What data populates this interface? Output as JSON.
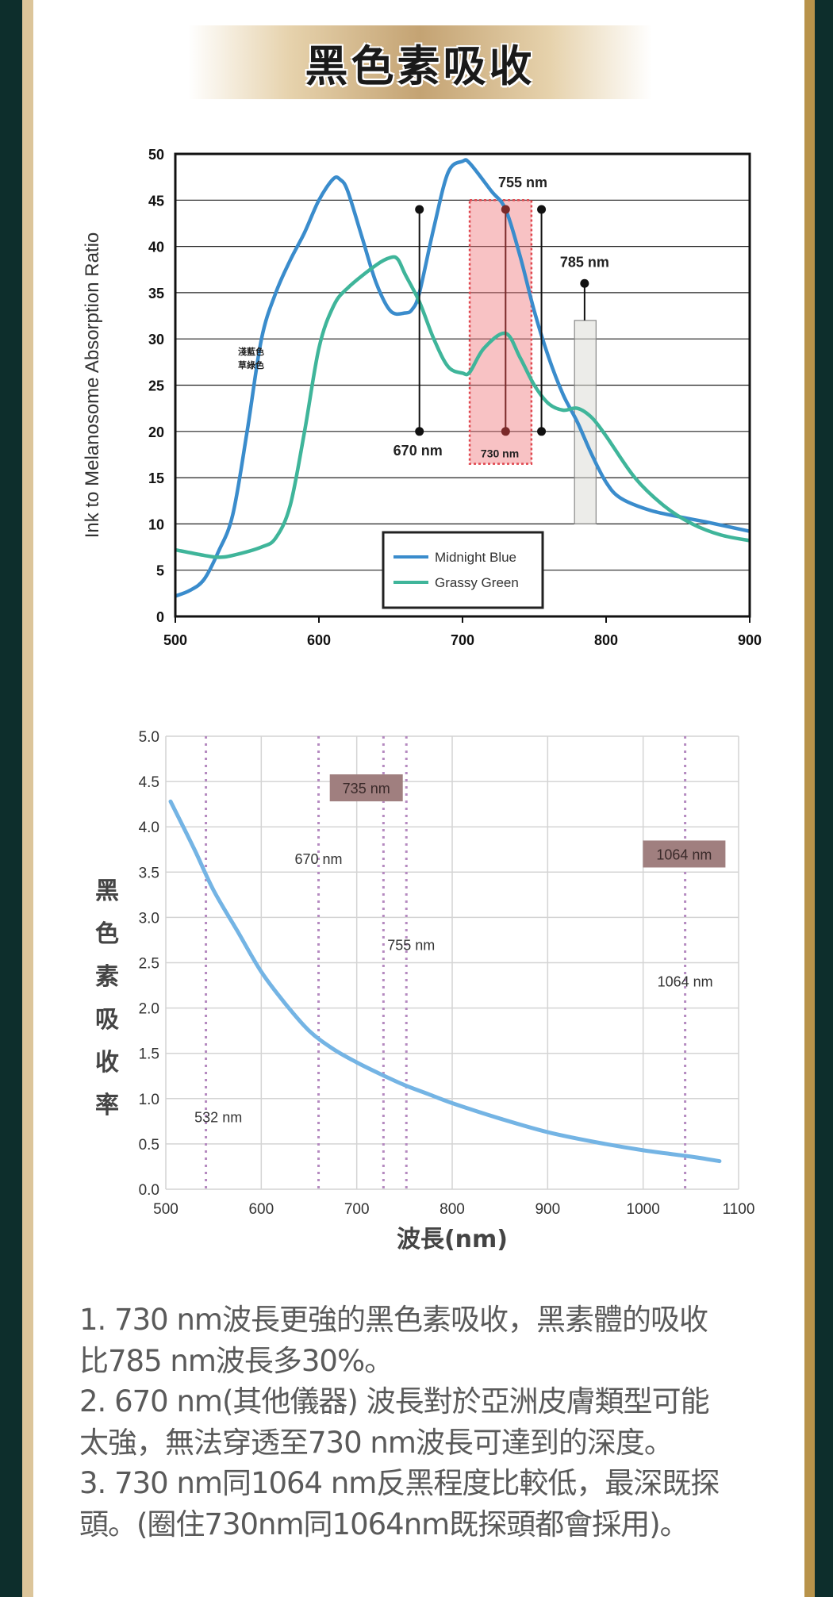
{
  "title": "黑色素吸收",
  "colors": {
    "blue": "#3a8ccc",
    "green": "#3fb59a",
    "curve": "#74b4e4",
    "label_box": "#a07f7f",
    "frame_dark": "#0d2e2c",
    "gold": "#b8934a"
  },
  "chart_data": [
    {
      "type": "line",
      "ylabel": "Ink to Melanosome Absorption Ratio",
      "xlabel": "",
      "xlim": [
        500,
        900
      ],
      "ylim": [
        0,
        50
      ],
      "x_ticks": [
        "500",
        "600",
        "700",
        "800",
        "900"
      ],
      "y_ticks": [
        "0",
        "5",
        "10",
        "15",
        "20",
        "25",
        "30",
        "35",
        "40",
        "45",
        "50"
      ],
      "grid": true,
      "legend_position": "bottom-center",
      "series": [
        {
          "name": "Midnight Blue",
          "color": "#3a8ccc",
          "points": [
            [
              500,
              2.2
            ],
            [
              510,
              2.8
            ],
            [
              520,
              4
            ],
            [
              530,
              7
            ],
            [
              540,
              11
            ],
            [
              550,
              20
            ],
            [
              560,
              30
            ],
            [
              570,
              35
            ],
            [
              580,
              38.5
            ],
            [
              590,
              41.5
            ],
            [
              600,
              45
            ],
            [
              610,
              47.3
            ],
            [
              615,
              47.2
            ],
            [
              620,
              46
            ],
            [
              630,
              41
            ],
            [
              640,
              36
            ],
            [
              650,
              33
            ],
            [
              660,
              32.8
            ],
            [
              665,
              33.2
            ],
            [
              670,
              35
            ],
            [
              680,
              42
            ],
            [
              690,
              48
            ],
            [
              700,
              49.2
            ],
            [
              705,
              49
            ],
            [
              720,
              46
            ],
            [
              730,
              44
            ],
            [
              740,
              39
            ],
            [
              750,
              33
            ],
            [
              760,
              28
            ],
            [
              770,
              24
            ],
            [
              780,
              21
            ],
            [
              790,
              17.5
            ],
            [
              800,
              14.5
            ],
            [
              810,
              12.8
            ],
            [
              830,
              11.5
            ],
            [
              850,
              10.8
            ],
            [
              870,
              10.2
            ],
            [
              900,
              9.2
            ]
          ]
        },
        {
          "name": "Grassy Green",
          "color": "#3fb59a",
          "points": [
            [
              500,
              7.2
            ],
            [
              520,
              6.6
            ],
            [
              530,
              6.4
            ],
            [
              540,
              6.6
            ],
            [
              560,
              7.5
            ],
            [
              570,
              8.5
            ],
            [
              580,
              12
            ],
            [
              590,
              20
            ],
            [
              600,
              29
            ],
            [
              610,
              33.5
            ],
            [
              620,
              35.5
            ],
            [
              640,
              38
            ],
            [
              650,
              38.8
            ],
            [
              655,
              38.6
            ],
            [
              660,
              37
            ],
            [
              670,
              34
            ],
            [
              680,
              30
            ],
            [
              690,
              27
            ],
            [
              700,
              26.3
            ],
            [
              705,
              26.4
            ],
            [
              715,
              29
            ],
            [
              730,
              30.6
            ],
            [
              740,
              28
            ],
            [
              750,
              25
            ],
            [
              760,
              23
            ],
            [
              770,
              22.3
            ],
            [
              780,
              22.5
            ],
            [
              790,
              21.5
            ],
            [
              800,
              19.5
            ],
            [
              820,
              15
            ],
            [
              840,
              12
            ],
            [
              860,
              10
            ],
            [
              880,
              8.8
            ],
            [
              900,
              8.2
            ]
          ]
        }
      ],
      "markers": [
        {
          "x": 670,
          "y_low": 20,
          "y_high": 44,
          "label": "670 nm"
        },
        {
          "x": 730,
          "y_low": 20,
          "y_high": 44,
          "label": "730 nm"
        },
        {
          "x": 755,
          "y_low": 20,
          "y_high": 44,
          "label": "755 nm"
        },
        {
          "x": 785,
          "y_low": 32,
          "y_high": 36,
          "label": "785 nm"
        }
      ],
      "highlight_band": {
        "x": [
          705,
          748
        ],
        "y": [
          16.5,
          45
        ]
      },
      "grey_band": {
        "x": [
          778,
          793
        ],
        "y": [
          10,
          32
        ]
      },
      "annotation": [
        "淺藍色",
        "草綠色"
      ]
    },
    {
      "type": "line",
      "ylabel": "黑色素吸收率",
      "xlabel": "波長(nm)",
      "xlim": [
        500,
        1100
      ],
      "ylim": [
        0,
        5
      ],
      "x_ticks": [
        "500",
        "600",
        "700",
        "800",
        "900",
        "1000",
        "1100"
      ],
      "y_ticks": [
        "0.0",
        "0.5",
        "1.0",
        "1.5",
        "2.0",
        "2.5",
        "3.0",
        "3.5",
        "4.0",
        "4.5",
        "5.0"
      ],
      "grid": true,
      "series": [
        {
          "name": "melanin absorption",
          "color": "#74b4e4",
          "points": [
            [
              505,
              4.28
            ],
            [
              530,
              3.75
            ],
            [
              550,
              3.3
            ],
            [
              575,
              2.85
            ],
            [
              600,
              2.4
            ],
            [
              625,
              2.05
            ],
            [
              650,
              1.75
            ],
            [
              675,
              1.55
            ],
            [
              700,
              1.4
            ],
            [
              725,
              1.27
            ],
            [
              750,
              1.15
            ],
            [
              775,
              1.05
            ],
            [
              800,
              0.95
            ],
            [
              850,
              0.78
            ],
            [
              900,
              0.63
            ],
            [
              950,
              0.52
            ],
            [
              1000,
              0.43
            ],
            [
              1050,
              0.36
            ],
            [
              1080,
              0.31
            ]
          ]
        }
      ],
      "vlines": [
        542,
        660,
        728,
        752,
        1044
      ],
      "labels": [
        {
          "text": "735 nm",
          "x": 710,
          "y": 4.43,
          "boxed": true
        },
        {
          "text": "670 nm",
          "x": 660,
          "y": 3.65,
          "boxed": false
        },
        {
          "text": "1064 nm",
          "x": 1043,
          "y": 3.7,
          "boxed": true
        },
        {
          "text": "755 nm",
          "x": 757,
          "y": 2.7,
          "boxed": false
        },
        {
          "text": "1064 nm",
          "x": 1044,
          "y": 2.3,
          "boxed": false
        },
        {
          "text": "532 nm",
          "x": 555,
          "y": 0.8,
          "boxed": false
        }
      ]
    }
  ],
  "notes": [
    "1. 730 nm波長更強的黑色素吸收，黑素體的吸收",
    "比785 nm波長多30%。",
    "2. 670 nm(其他儀器) 波長對於亞洲皮膚類型可能",
    "太強，無法穿透至730 nm波長可達到的深度。",
    "3. 730 nm同1064 nm反黑程度比較低，最深既探",
    "頭。(圈住730nm同1064nm既探頭都會採用)。"
  ]
}
